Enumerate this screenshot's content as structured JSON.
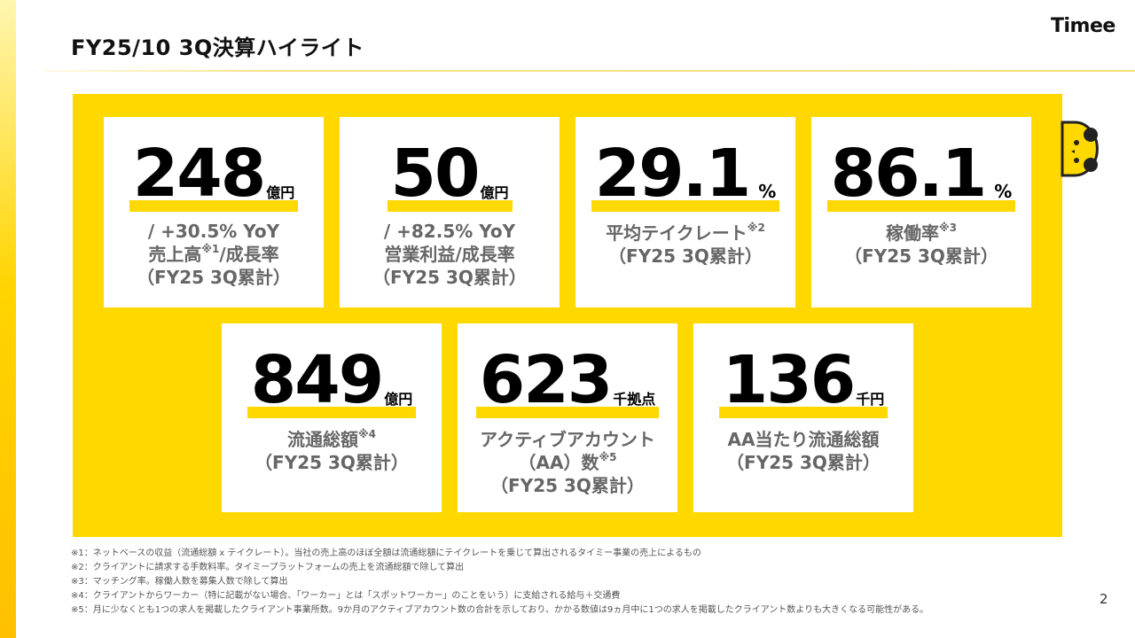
{
  "header": {
    "title": "FY25/10 3Q決算ハイライト",
    "logo": "Timee"
  },
  "colors": {
    "accent": "#ffd800",
    "text": "#111111",
    "label": "#666666"
  },
  "cards": [
    {
      "value": "248",
      "unit": "億円",
      "lines": [
        {
          "text": "/ +30.5% YoY"
        },
        {
          "text": "売上高",
          "sup": "※1",
          "after": "/成長率"
        },
        {
          "text": "（FY25 3Q累計）"
        }
      ]
    },
    {
      "value": "50",
      "unit": "億円",
      "lines": [
        {
          "text": "/ +82.5% YoY"
        },
        {
          "text": "営業利益/成長率"
        },
        {
          "text": "（FY25 3Q累計）"
        }
      ]
    },
    {
      "value": "29.1",
      "unit": "%",
      "lines": [
        {
          "text": "平均テイクレート",
          "sup": "※2"
        },
        {
          "text": "（FY25 3Q累計）"
        }
      ]
    },
    {
      "value": "86.1",
      "unit": "%",
      "lines": [
        {
          "text": "稼働率",
          "sup": "※3"
        },
        {
          "text": "（FY25 3Q累計）"
        }
      ]
    },
    {
      "value": "849",
      "unit": "億円",
      "lines": [
        {
          "text": "流通総額",
          "sup": "※4"
        },
        {
          "text": "（FY25 3Q累計）"
        }
      ]
    },
    {
      "value": "623",
      "unit": "千拠点",
      "lines": [
        {
          "text": "アクティブアカウント"
        },
        {
          "text": "（AA）数",
          "sup": "※5"
        },
        {
          "text": "（FY25 3Q累計）"
        }
      ]
    },
    {
      "value": "136",
      "unit": "千円",
      "lines": [
        {
          "text": "AA当たり流通総額"
        },
        {
          "text": "（FY25 3Q累計）"
        }
      ]
    }
  ],
  "footnotes": [
    "※1：ネットベースの収益（流通総額 x テイクレート）。当社の売上高のほぼ全額は流通総額にテイクレートを乗じて算出されるタイミー事業の売上によるもの",
    "※2：クライアントに請求する手数料率。タイミープラットフォームの売上を流通総額で除して算出",
    "※3：マッチング率。稼働人数を募集人数で除して算出",
    "※4：クライアントからワーカー（特に記載がない場合、「ワーカー」とは「スポットワーカー」のことをいう）に支給される給与＋交通費",
    "※5：月に少なくとも1つの求人を掲載したクライアント事業所数。9か月のアクティブアカウント数の合計を示しており、かかる数値は9ヵ月中に1つの求人を掲載したクライアント数よりも大きくなる可能性がある。"
  ],
  "page_number": "2"
}
